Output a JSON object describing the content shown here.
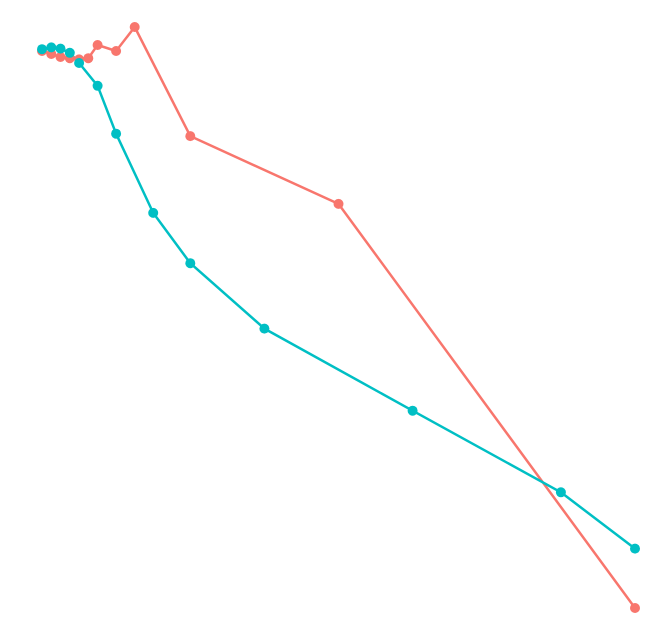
{
  "chart_data": {
    "type": "line",
    "grid": false,
    "legend": "none",
    "title": "",
    "xlabel": "",
    "ylabel": "",
    "series": [
      {
        "color": "#f8766d",
        "points": [
          {
            "x": 0,
            "y": 0.0
          },
          {
            "x": 1,
            "y": -0.5
          },
          {
            "x": 2,
            "y": -1.0
          },
          {
            "x": 3,
            "y": -1.2
          },
          {
            "x": 4,
            "y": -1.4
          },
          {
            "x": 5,
            "y": -1.2
          },
          {
            "x": 6,
            "y": 1.0
          },
          {
            "x": 8,
            "y": 0.0
          },
          {
            "x": 10,
            "y": 4.0
          },
          {
            "x": 16,
            "y": -14.2
          },
          {
            "x": 32,
            "y": -25.5
          },
          {
            "x": 64,
            "y": -92.9
          }
        ]
      },
      {
        "color": "#00bfc4",
        "points": [
          {
            "x": 0,
            "y": 0.3
          },
          {
            "x": 1,
            "y": 0.6
          },
          {
            "x": 2,
            "y": 0.4
          },
          {
            "x": 3,
            "y": -0.3
          },
          {
            "x": 4,
            "y": -2.0
          },
          {
            "x": 6,
            "y": -5.8
          },
          {
            "x": 8,
            "y": -13.8
          },
          {
            "x": 12,
            "y": -27.0
          },
          {
            "x": 16,
            "y": -35.4
          },
          {
            "x": 24,
            "y": -46.3
          },
          {
            "x": 40,
            "y": -60.0
          },
          {
            "x": 56,
            "y": -73.6
          },
          {
            "x": 64,
            "y": -83.0
          }
        ]
      }
    ]
  }
}
